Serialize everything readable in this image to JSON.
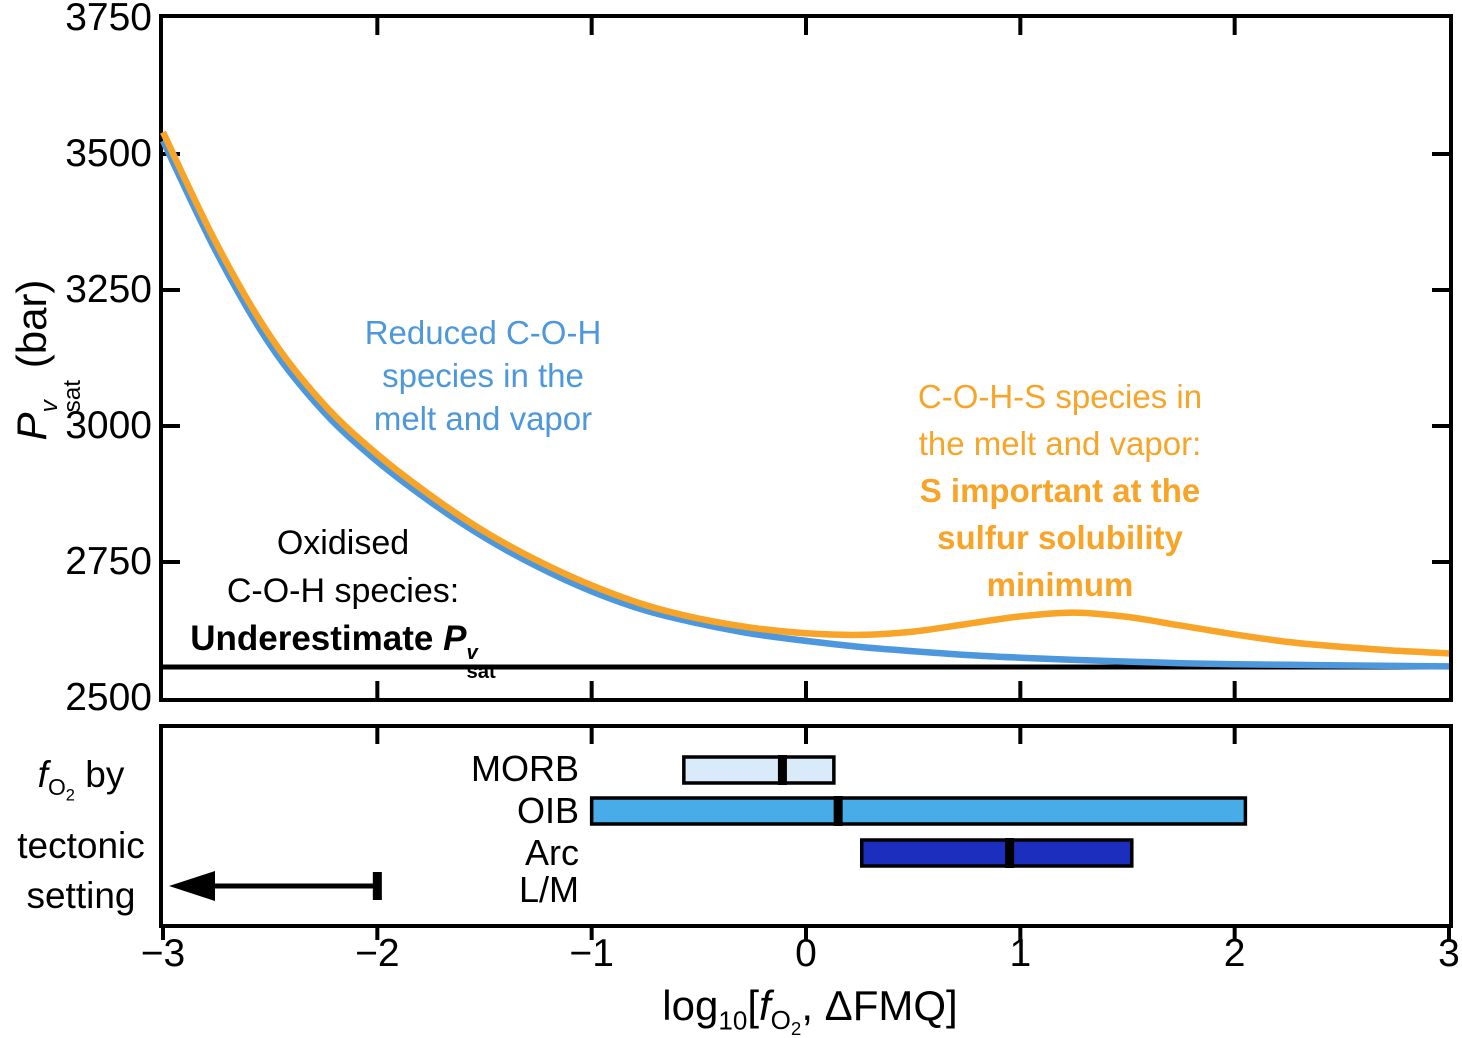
{
  "main_plot": {
    "ylabel": {
      "p": "P",
      "sup": "v",
      "sub": "sat",
      "rest": " (bar)"
    },
    "annotations": {
      "blue": {
        "color": "#4D97DC",
        "lines": [
          "Reduced C-O-H",
          "species in the",
          "melt and vapor"
        ]
      },
      "orange": {
        "color": "#F7A428",
        "lines_regular": [
          "C-O-H-S species in",
          "the melt and vapor:"
        ],
        "lines_bold": [
          "S important at the",
          "sulfur solubility",
          "minimum"
        ]
      },
      "black": {
        "lines": [
          "Oxidised",
          "C-O-H species:"
        ],
        "bold_prefix": "Underestimate ",
        "p": "P",
        "sup": "v",
        "sub": "sat"
      }
    }
  },
  "x_axis": {
    "label": {
      "log": "log",
      "log_sub": "10",
      "open": "[",
      "f": "f",
      "f_sub_o": "O",
      "f_sub_2": "2",
      "rest": ", ΔFMQ]"
    }
  },
  "bottom_panel": {
    "row_labels": [
      "MORB",
      "OIB",
      "Arc",
      "L/M"
    ],
    "side_label": {
      "f": "f",
      "f_sub_o": "O",
      "f_sub_2": "2",
      "line1_rest": " by",
      "line2": "tectonic",
      "line3": "setting"
    }
  },
  "chart_data": {
    "main_plot": {
      "type": "line",
      "xlabel": "log10[fO2, ΔFMQ]",
      "ylabel": "Pv_sat (bar)",
      "xlim": [
        -3,
        3
      ],
      "ylim": [
        2500,
        3750
      ],
      "x_ticks": [
        -3,
        -2,
        -1,
        0,
        1,
        2,
        3
      ],
      "x_tick_labels": [
        "−3",
        "−2",
        "−1",
        "0",
        "1",
        "2",
        "3"
      ],
      "y_ticks": [
        2500,
        2750,
        3000,
        3250,
        3500,
        3750
      ],
      "y_tick_labels": [
        "2500",
        "2750",
        "3000",
        "3250",
        "3500",
        "3750"
      ],
      "grid": false,
      "legend": "none (inline text annotations)",
      "series": [
        {
          "name": "Oxidised C-O-H species: Underestimate Pv_sat",
          "data_name": "underestimate-line",
          "color": "#000000",
          "width": 5,
          "x": [
            -3,
            3
          ],
          "y": [
            2557,
            2557
          ]
        },
        {
          "name": "Reduced C-O-H species in the melt and vapor",
          "data_name": "blue-curve",
          "color": "#4D97DC",
          "width": 6.5,
          "x": [
            -3,
            -2.75,
            -2.5,
            -2.25,
            -2,
            -1.75,
            -1.5,
            -1.25,
            -1,
            -0.75,
            -0.5,
            -0.25,
            0,
            0.25,
            0.5,
            0.75,
            1,
            1.25,
            1.5,
            1.75,
            2,
            2.25,
            2.5,
            2.75,
            3
          ],
          "y": [
            3524,
            3319,
            3149,
            3026,
            2935,
            2860,
            2795,
            2741,
            2696,
            2661,
            2637,
            2618,
            2605,
            2594,
            2586,
            2579,
            2574,
            2570,
            2567,
            2564,
            2562,
            2561,
            2560,
            2559,
            2558
          ]
        },
        {
          "name": "C-O-H-S species in the melt and vapor: S important at the sulfur solubility minimum",
          "data_name": "orange-curve",
          "color": "#F7A428",
          "width": 6.5,
          "x": [
            -3,
            -2.75,
            -2.5,
            -2.25,
            -2,
            -1.75,
            -1.5,
            -1.25,
            -1,
            -0.75,
            -0.5,
            -0.25,
            0,
            0.25,
            0.5,
            0.75,
            1,
            1.25,
            1.5,
            1.75,
            2,
            2.25,
            2.5,
            2.75,
            3
          ],
          "y": [
            3540,
            3335,
            3165,
            3040,
            2948,
            2872,
            2806,
            2752,
            2707,
            2671,
            2646,
            2629,
            2619,
            2616,
            2622,
            2636,
            2650,
            2657,
            2649,
            2633,
            2617,
            2603,
            2594,
            2587,
            2582
          ]
        }
      ]
    },
    "tectonic_panel": {
      "type": "bar",
      "title": "fO2 by tectonic setting",
      "x_axis": "log10[fO2, ΔFMQ]",
      "rows": [
        {
          "label": "MORB",
          "min": -0.57,
          "max": 0.13,
          "median": -0.11,
          "color": "#D9EAF8"
        },
        {
          "label": "OIB",
          "min": -1.0,
          "max": 2.05,
          "median": 0.15,
          "color": "#47ACE8"
        },
        {
          "label": "Arc",
          "min": 0.26,
          "max": 1.52,
          "median": 0.95,
          "color": "#1B2EBE"
        },
        {
          "label": "L/M",
          "type": "arrow",
          "upper_limit": -2,
          "direction": "left",
          "color": "#000000"
        }
      ]
    }
  }
}
